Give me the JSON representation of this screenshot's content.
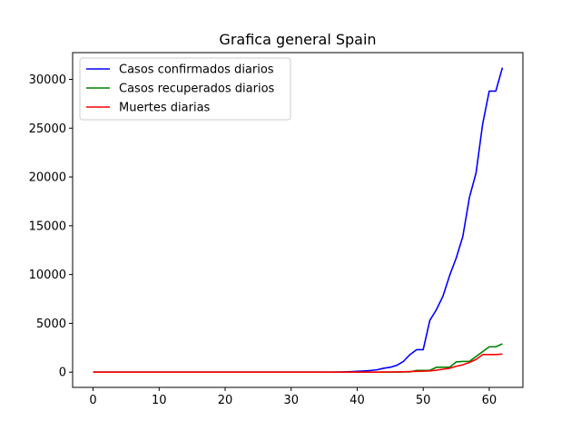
{
  "chart_data": {
    "type": "line",
    "title": "Grafica general Spain",
    "xlabel": "",
    "ylabel": "",
    "xlim": [
      -3.1,
      65.1
    ],
    "ylim": [
      -1560,
      32740
    ],
    "xticks": [
      0,
      10,
      20,
      30,
      40,
      50,
      60
    ],
    "yticks": [
      0,
      5000,
      10000,
      15000,
      20000,
      25000,
      30000
    ],
    "legend_position": "upper left",
    "grid": false,
    "x": [
      0,
      1,
      2,
      3,
      4,
      5,
      6,
      7,
      8,
      9,
      10,
      11,
      12,
      13,
      14,
      15,
      16,
      17,
      18,
      19,
      20,
      21,
      22,
      23,
      24,
      25,
      26,
      27,
      28,
      29,
      30,
      31,
      32,
      33,
      34,
      35,
      36,
      37,
      38,
      39,
      40,
      41,
      42,
      43,
      44,
      45,
      46,
      47,
      48,
      49,
      50,
      51,
      52,
      53,
      54,
      55,
      56,
      57,
      58,
      59,
      60,
      61,
      62
    ],
    "series": [
      {
        "name": "Casos confirmados diarios",
        "color": "#0000ff",
        "values": [
          0,
          0,
          0,
          0,
          0,
          0,
          0,
          0,
          0,
          0,
          0,
          0,
          0,
          0,
          0,
          0,
          0,
          0,
          0,
          0,
          0,
          0,
          0,
          0,
          0,
          0,
          0,
          0,
          0,
          0,
          0,
          0,
          0,
          0,
          0,
          0,
          0,
          10,
          30,
          50,
          80,
          120,
          170,
          240,
          400,
          500,
          700,
          1100,
          1800,
          2300,
          2300,
          5300,
          6400,
          7800,
          9900,
          11700,
          13900,
          17900,
          20400,
          25400,
          28800,
          28800,
          31200
        ]
      },
      {
        "name": "Casos recuperados diarios",
        "color": "#008000",
        "values": [
          0,
          0,
          0,
          0,
          0,
          0,
          0,
          0,
          0,
          0,
          0,
          0,
          0,
          0,
          0,
          0,
          0,
          0,
          0,
          0,
          0,
          0,
          0,
          0,
          0,
          0,
          0,
          0,
          0,
          0,
          0,
          0,
          0,
          0,
          0,
          0,
          0,
          0,
          0,
          0,
          0,
          0,
          0,
          0,
          0,
          0,
          0,
          20,
          30,
          180,
          180,
          180,
          500,
          500,
          500,
          1050,
          1100,
          1100,
          1600,
          2100,
          2600,
          2600,
          2900
        ]
      },
      {
        "name": "Muertes diarias",
        "color": "#ff0000",
        "values": [
          0,
          0,
          0,
          0,
          0,
          0,
          0,
          0,
          0,
          0,
          0,
          0,
          0,
          0,
          0,
          0,
          0,
          0,
          0,
          0,
          0,
          0,
          0,
          0,
          0,
          0,
          0,
          0,
          0,
          0,
          0,
          0,
          0,
          0,
          0,
          0,
          0,
          0,
          0,
          0,
          0,
          0,
          0,
          0,
          10,
          20,
          30,
          40,
          60,
          80,
          100,
          130,
          200,
          300,
          400,
          600,
          750,
          1000,
          1300,
          1800,
          1800,
          1800,
          1850
        ]
      }
    ]
  }
}
